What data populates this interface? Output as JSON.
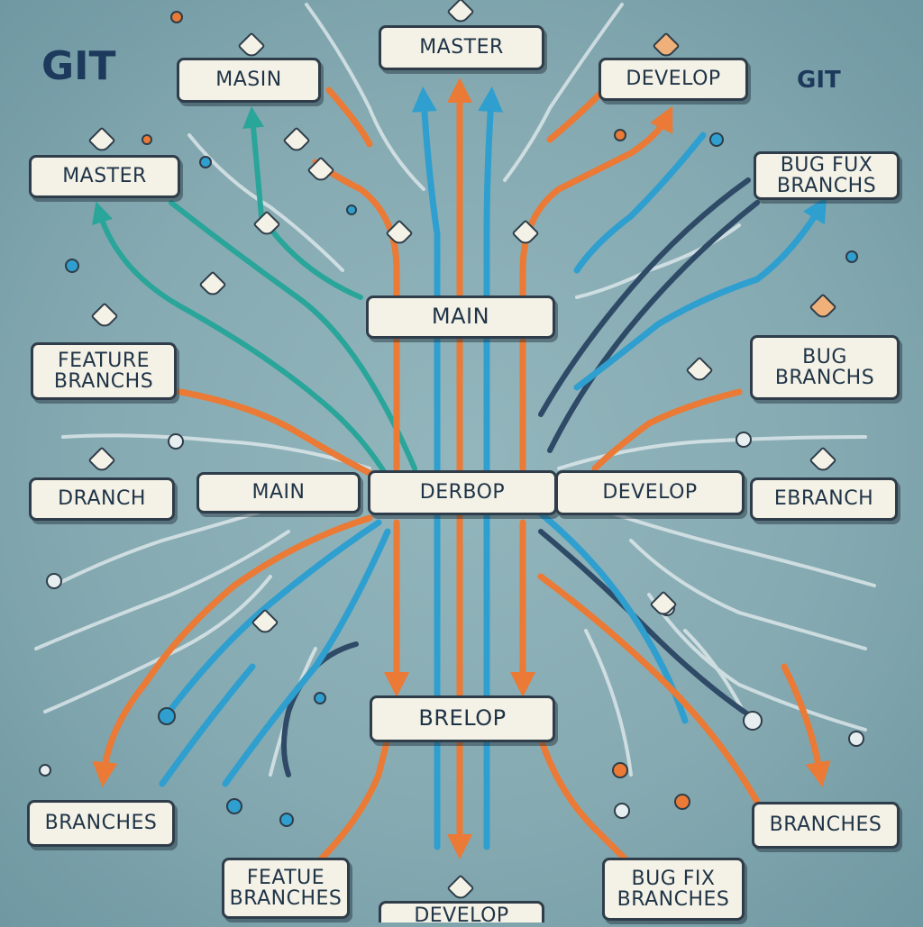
{
  "titles": {
    "left": "GIT",
    "right": "GIT"
  },
  "nodes": {
    "master_top": "MASTER",
    "masin": "MASIN",
    "develop_top": "DEVELOP",
    "master_left": "MASTER",
    "bug_fux_branchs": "BUG FUX\nBRANCHS",
    "main_center": "MAIN",
    "feature_branchs": "FEATURE\nBRANCHS",
    "bug_branchs": "BUG\nBRANCHS",
    "dranch": "DRANCH",
    "main_mid": "MAIN",
    "derbop": "DERBOP",
    "develop_mid": "DEVELOP",
    "ebranch": "EBRANCH",
    "brelop": "BRELOP",
    "branches_left": "BRANCHES",
    "branches_right": "BRANCHES",
    "featue_branches": "FEATUE\nBRANCHES",
    "bug_fix_branches": "BUG FIX\nBRANCHES",
    "develop_bottom": "DEVELOP"
  },
  "colors": {
    "orange": "#ea7a35",
    "blue": "#2f9fcf",
    "teal": "#2aa59a",
    "navy": "#2e4a66",
    "cream": "#f4f1e6",
    "outline": "#2e3d49"
  }
}
